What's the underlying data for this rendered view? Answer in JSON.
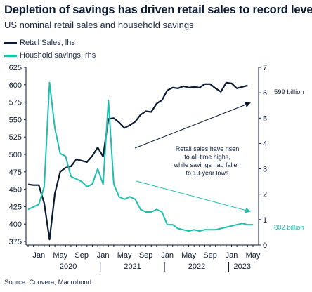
{
  "colors": {
    "retail": "#0b1a33",
    "savings": "#1fbfae",
    "axis": "#0b1a33"
  },
  "chart_data": {
    "type": "line",
    "title": "Depletion of savings has driven retail sales to record levels",
    "subtitle": "US nominal retail sales and household savings",
    "source": "Source: Convera, Macrobond",
    "x_tick_labels": [
      "Jan",
      "May",
      "Sep",
      "Jan",
      "May",
      "Sep",
      "Jan",
      "May",
      "Sep",
      "Jan",
      "May"
    ],
    "x_year_labels": [
      "2020",
      "2021",
      "2022",
      "2023"
    ],
    "y_left": {
      "ylim": [
        370,
        625
      ],
      "ticks": [
        375,
        400,
        425,
        450,
        475,
        500,
        525,
        550,
        575,
        600,
        625
      ]
    },
    "y_right": {
      "ylim": [
        0,
        7
      ],
      "ticks": [
        0,
        1,
        2,
        3,
        4,
        5,
        6,
        7
      ]
    },
    "x_months": [
      "2019-11",
      "2019-12",
      "2020-01",
      "2020-02",
      "2020-03",
      "2020-04",
      "2020-05",
      "2020-06",
      "2020-07",
      "2020-08",
      "2020-09",
      "2020-10",
      "2020-11",
      "2020-12",
      "2021-01",
      "2021-02",
      "2021-03",
      "2021-04",
      "2021-05",
      "2021-06",
      "2021-07",
      "2021-08",
      "2021-09",
      "2021-10",
      "2021-11",
      "2021-12",
      "2022-01",
      "2022-02",
      "2022-03",
      "2022-04",
      "2022-05",
      "2022-06",
      "2022-07",
      "2022-08",
      "2022-09",
      "2022-10",
      "2022-11",
      "2022-12",
      "2023-01",
      "2023-02",
      "2023-03",
      "2023-04",
      "2023-05"
    ],
    "series": [
      {
        "name": "Retail Sales, lhs",
        "axis": "left",
        "color": "#0b1a33",
        "values": [
          457,
          456,
          456,
          430,
          378,
          444,
          475,
          481,
          483,
          493,
          491,
          489,
          498,
          510,
          497,
          551,
          552,
          546,
          538,
          542,
          547,
          557,
          562,
          561,
          573,
          578,
          592,
          596,
          595,
          598,
          596,
          597,
          596,
          601,
          601,
          595,
          590,
          603,
          602,
          595,
          597,
          599,
          null
        ]
      },
      {
        "name": "Houshold savings, rhs",
        "axis": "right",
        "color": "#1fbfae",
        "values": [
          1.4,
          1.5,
          1.6,
          2.3,
          6.4,
          4.6,
          3.6,
          3.5,
          2.7,
          2.6,
          2.5,
          2.3,
          2.4,
          3.0,
          2.4,
          5.7,
          2.4,
          1.9,
          1.8,
          1.9,
          1.8,
          1.4,
          1.3,
          1.3,
          1.4,
          1.3,
          0.8,
          0.8,
          0.65,
          0.6,
          0.55,
          0.6,
          0.55,
          0.6,
          0.6,
          0.6,
          0.65,
          0.7,
          0.75,
          0.8,
          0.85,
          0.8,
          0.8
        ]
      }
    ],
    "end_labels": {
      "retail": "599 billion",
      "savings": "802 billion"
    },
    "annotation": [
      "Retail sales have risen",
      "to all-time highs,",
      "while savings had fallen",
      "to 13-year lows"
    ]
  }
}
